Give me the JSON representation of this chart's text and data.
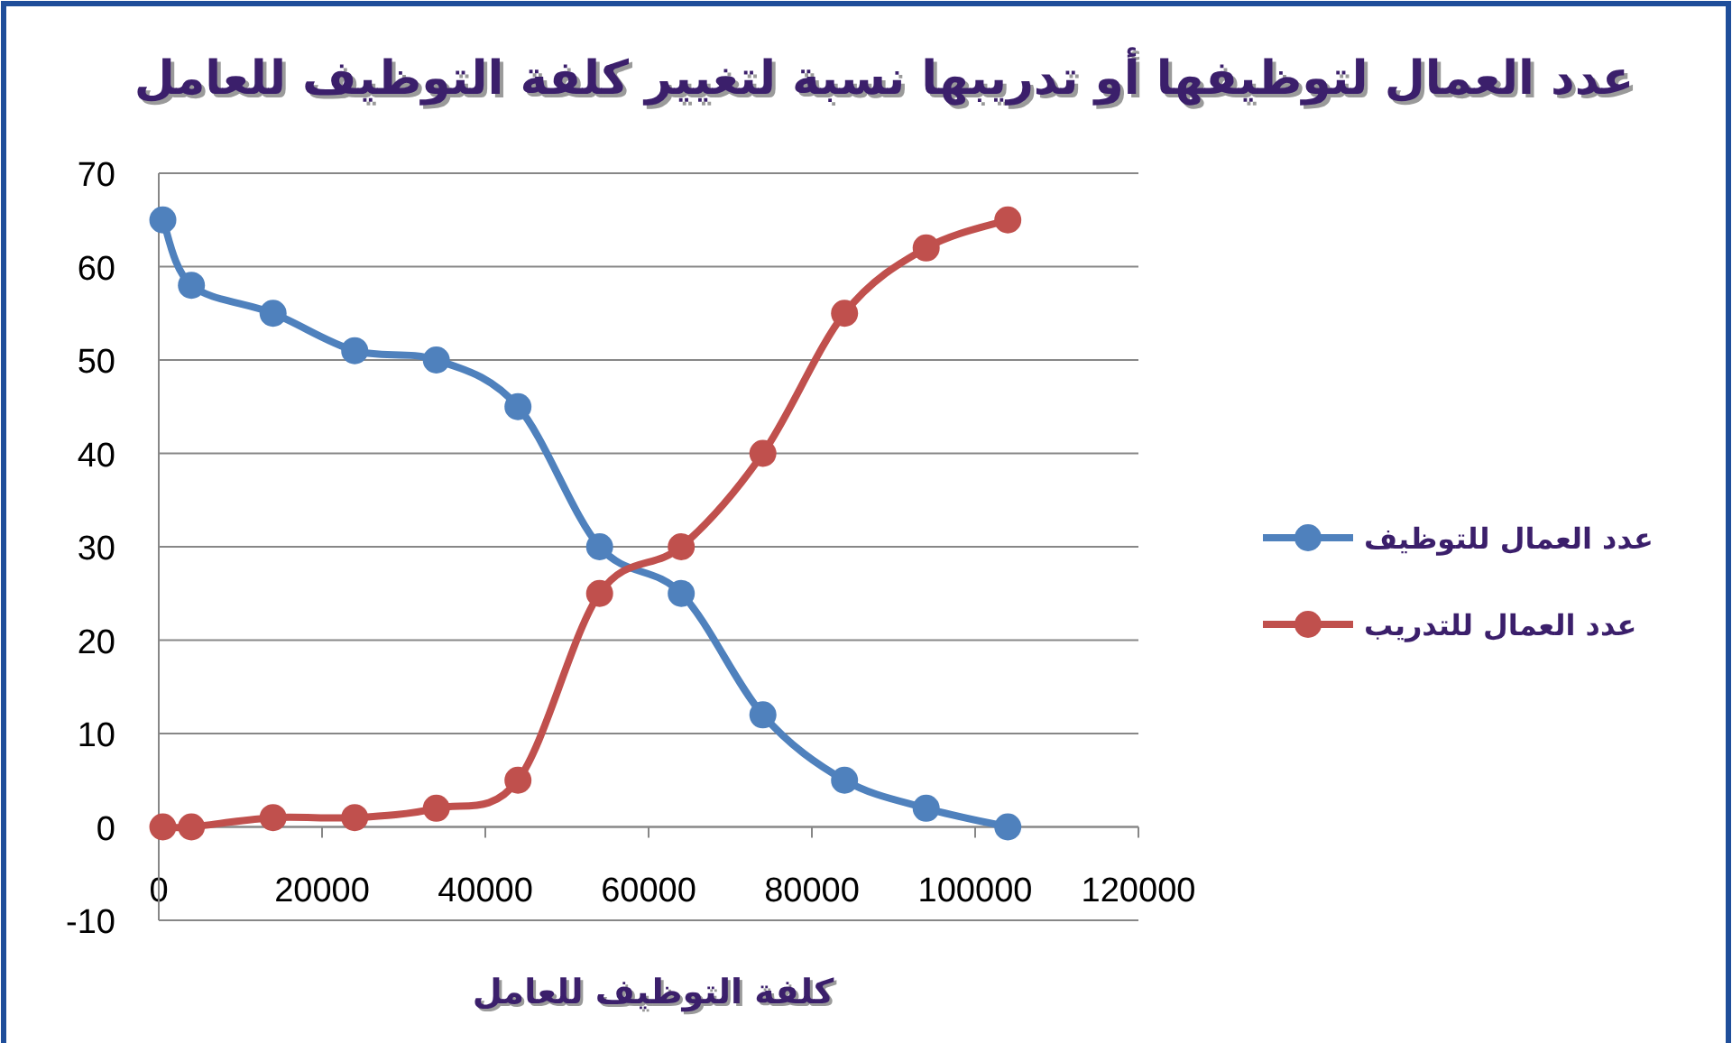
{
  "chart_data": {
    "type": "line",
    "title": "عدد العمال لتوظيفها أو تدريبها نسبة لتغيير كلفة التوظيف للعامل",
    "xlabel": "كلفة التوظيف للعامل",
    "x": [
      500,
      4000,
      14000,
      24000,
      34000,
      44000,
      54000,
      64000,
      74000,
      84000,
      94000,
      104000
    ],
    "series": [
      {
        "name": "عدد العمال للتوظيف",
        "color": "#4f81bd",
        "values": [
          65,
          58,
          55,
          51,
          50,
          45,
          30,
          25,
          12,
          5,
          2,
          0
        ]
      },
      {
        "name": "عدد العمال للتدريب",
        "color": "#c0504d",
        "values": [
          0,
          0,
          1,
          1,
          2,
          5,
          25,
          30,
          40,
          55,
          62,
          65
        ]
      }
    ],
    "xlim": [
      0,
      120000
    ],
    "xticks": [
      0,
      20000,
      40000,
      60000,
      80000,
      100000,
      120000
    ],
    "ylim": [
      -10,
      70
    ],
    "yticks": [
      -10,
      0,
      10,
      20,
      30,
      40,
      50,
      60,
      70
    ],
    "grid": "y",
    "legend": "right",
    "marker": "circle",
    "line_style": "solid"
  }
}
